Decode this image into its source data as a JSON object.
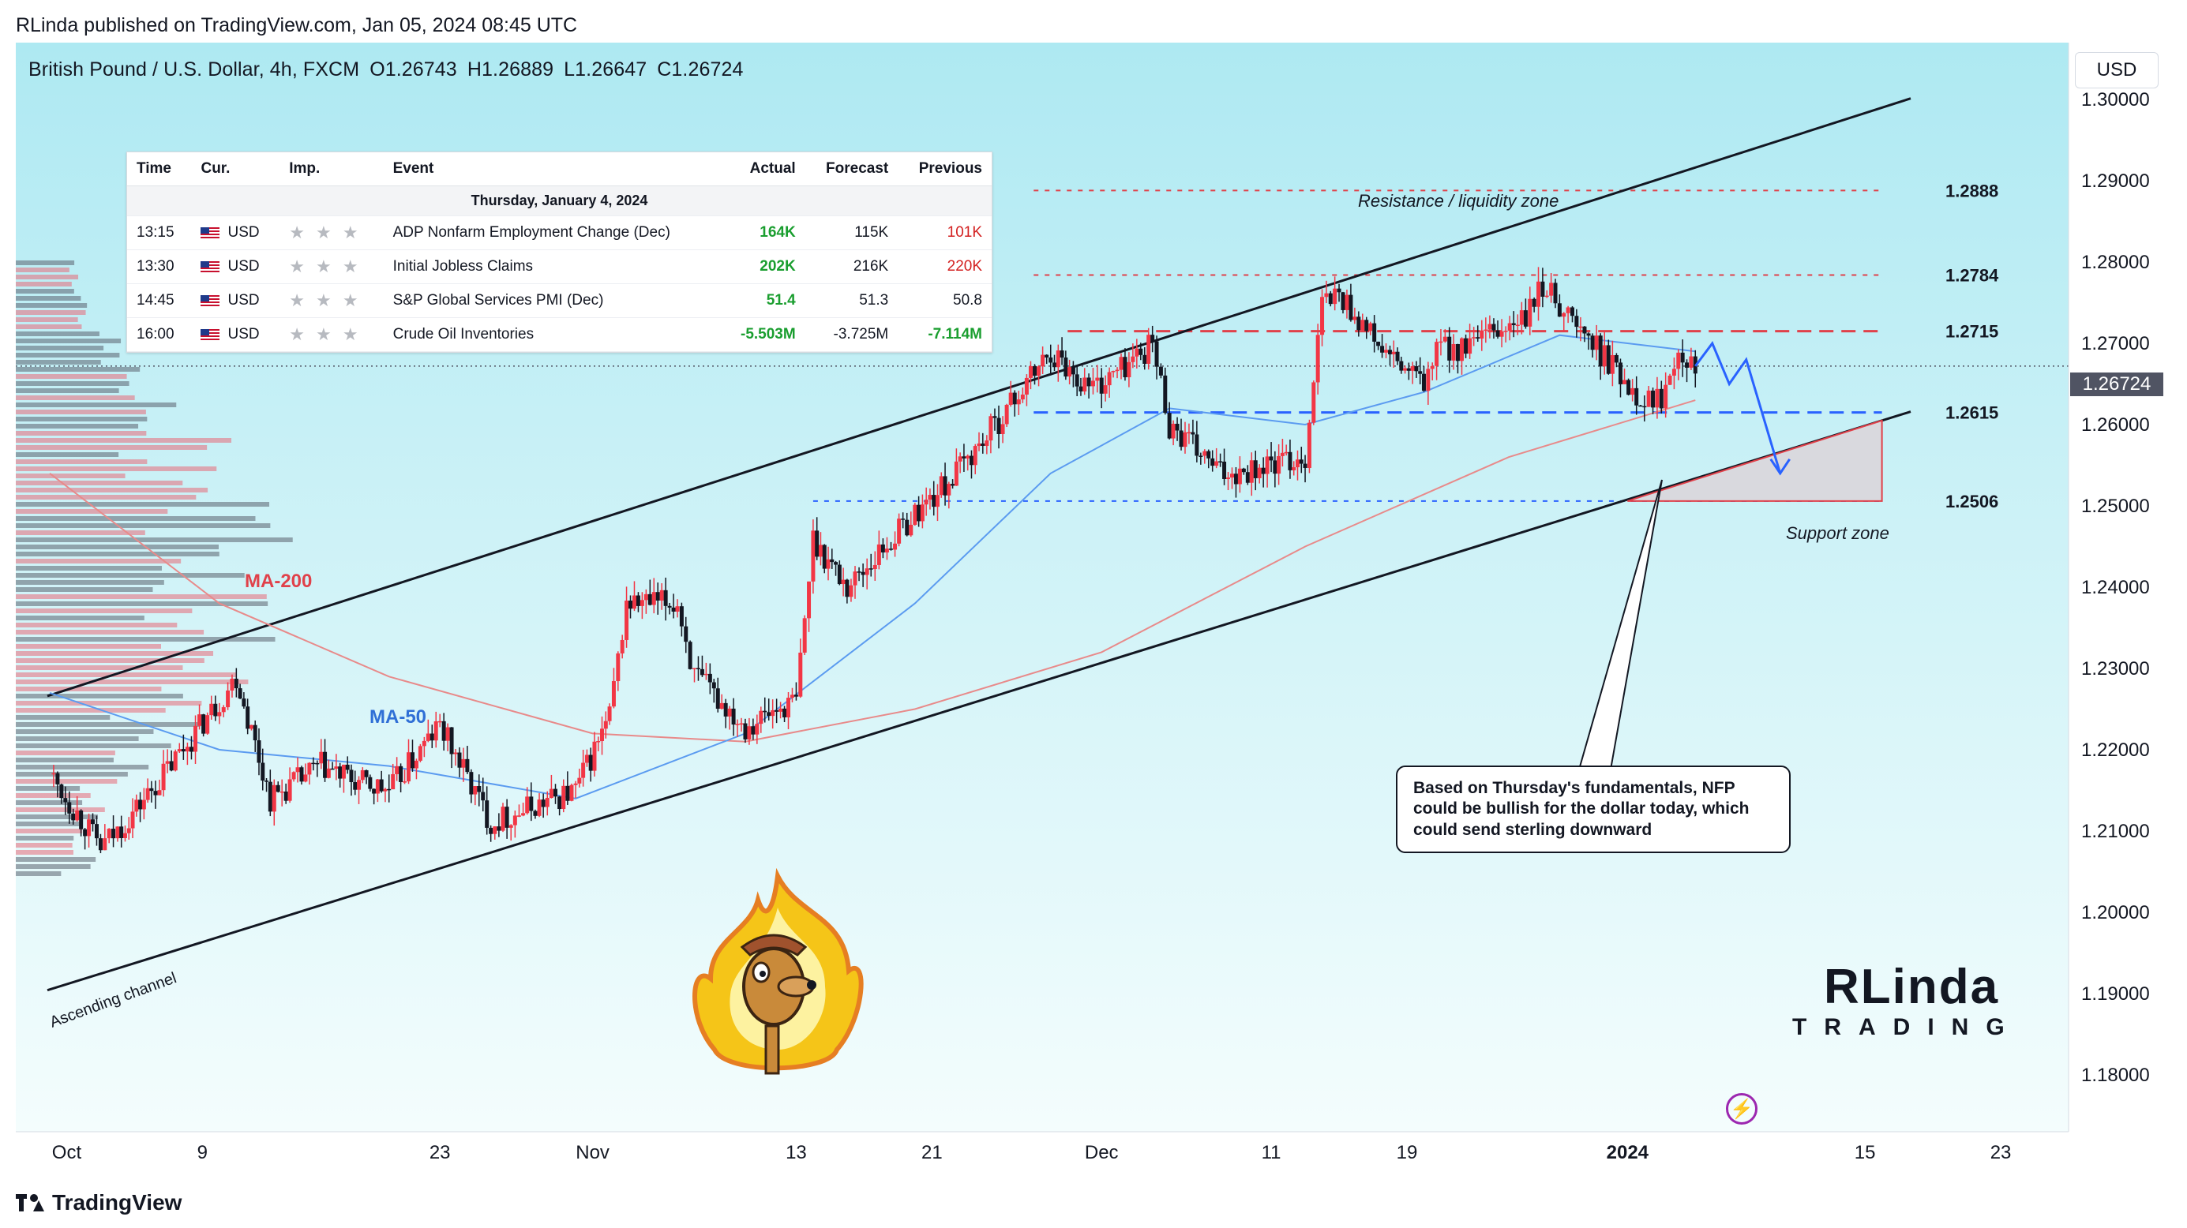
{
  "publisher_line": "RLinda published on TradingView.com, Jan 05, 2024 08:45 UTC",
  "symbol": {
    "name": "British Pound / U.S. Dollar, 4h, FXCM",
    "open": "O1.26743",
    "high": "H1.26889",
    "low": "L1.26647",
    "close": "C1.26724"
  },
  "currency": "USD",
  "current_price_label": "1.26724",
  "calendar": {
    "headers": [
      "Time",
      "Cur.",
      "Imp.",
      "Event",
      "Actual",
      "Forecast",
      "Previous"
    ],
    "date": "Thursday, January 4, 2024",
    "rows": [
      {
        "time": "13:15",
        "cur": "USD",
        "imp": "★ ★ ★",
        "event": "ADP Nonfarm Employment Change (Dec)",
        "actual": "164K",
        "forecast": "115K",
        "previous": "101K",
        "actual_color": "pos",
        "previous_color": "neg"
      },
      {
        "time": "13:30",
        "cur": "USD",
        "imp": "★ ★ ★",
        "event": "Initial Jobless Claims",
        "actual": "202K",
        "forecast": "216K",
        "previous": "220K",
        "actual_color": "pos",
        "previous_color": "neg"
      },
      {
        "time": "14:45",
        "cur": "USD",
        "imp": "★ ★ ★",
        "event": "S&P Global Services PMI (Dec)",
        "actual": "51.4",
        "forecast": "51.3",
        "previous": "50.8",
        "actual_color": "pos",
        "previous_color": ""
      },
      {
        "time": "16:00",
        "cur": "USD",
        "imp": "★ ★ ★",
        "event": "Crude Oil Inventories",
        "actual": "-5.503M",
        "forecast": "-3.725M",
        "previous": "-7.114M",
        "actual_color": "pos",
        "previous_color": "pos"
      }
    ]
  },
  "annotations": {
    "resistance_zone": "Resistance / liquidity zone",
    "support_zone": "Support zone",
    "ascending_channel": "Ascending channel",
    "ma200": "MA-200",
    "ma50": "MA-50",
    "note": "Based on Thursday's fundamentals, NFP could be bullish for the dollar today, which could send sterling downward"
  },
  "logo": {
    "big": "RLinda",
    "small": "TRADING"
  },
  "footer_brand": "TradingView",
  "colors": {
    "background_gradient_top": "#aee9f2",
    "background_gradient_bottom": "#f4fdfd",
    "candle_up": "#f23645",
    "candle_down": "#131722",
    "ma50": "#5b9bf0",
    "ma200": "#e88a8a",
    "resistance_line": "#e0414a",
    "support_line": "#2962ff",
    "forecast_arrow": "#2962ff"
  },
  "chart_data": {
    "type": "candlestick",
    "title": "British Pound / U.S. Dollar, 4h, FXCM",
    "timeframe": "4h",
    "y_axis": {
      "ticks": [
        1.18,
        1.19,
        1.2,
        1.21,
        1.22,
        1.23,
        1.24,
        1.25,
        1.26,
        1.27,
        1.28,
        1.29,
        1.3
      ],
      "tick_labels": [
        "1.18000",
        "1.19000",
        "1.20000",
        "1.21000",
        "1.22000",
        "1.23000",
        "1.24000",
        "1.25000",
        "1.26000",
        "1.27000",
        "1.28000",
        "1.29000",
        "1.30000"
      ],
      "range": [
        1.173,
        1.307
      ]
    },
    "x_axis": {
      "tick_labels": [
        "Oct",
        "9",
        "23",
        "Nov",
        "13",
        "21",
        "Dec",
        "11",
        "19",
        "2024",
        "15",
        "23"
      ],
      "tick_dates": [
        "2023-10-01",
        "2023-10-09",
        "2023-10-23",
        "2023-11-01",
        "2023-11-13",
        "2023-11-21",
        "2023-12-01",
        "2023-12-11",
        "2023-12-19",
        "2024-01-01",
        "2024-01-15",
        "2024-01-23"
      ],
      "range": [
        "2023-09-28",
        "2024-01-27"
      ]
    },
    "levels": [
      {
        "label": "1.2888",
        "value": 1.2888,
        "style": "dotted-red"
      },
      {
        "label": "1.2784",
        "value": 1.2784,
        "style": "dotted-red"
      },
      {
        "label": "1.2715",
        "value": 1.2715,
        "style": "dashed-red"
      },
      {
        "label": "1.2615",
        "value": 1.2615,
        "style": "dashed-blue"
      },
      {
        "label": "1.2506",
        "value": 1.2506,
        "style": "dotted-blue"
      }
    ],
    "channel": {
      "upper": [
        [
          "2023-09-30",
          1.2267
        ],
        [
          "2024-01-16",
          1.299
        ]
      ],
      "lower": [
        [
          "2023-09-30",
          1.1905
        ],
        [
          "2024-01-16",
          1.2605
        ]
      ]
    },
    "close_path": [
      [
        "2023-09-30",
        1.217
      ],
      [
        "2023-10-03",
        1.208
      ],
      [
        "2023-10-04",
        1.21
      ],
      [
        "2023-10-06",
        1.215
      ],
      [
        "2023-10-10",
        1.226
      ],
      [
        "2023-10-11",
        1.229
      ],
      [
        "2023-10-13",
        1.214
      ],
      [
        "2023-10-16",
        1.218
      ],
      [
        "2023-10-18",
        1.216
      ],
      [
        "2023-10-20",
        1.215
      ],
      [
        "2023-10-23",
        1.223
      ],
      [
        "2023-10-26",
        1.211
      ],
      [
        "2023-10-31",
        1.215
      ],
      [
        "2023-11-02",
        1.224
      ],
      [
        "2023-11-03",
        1.238
      ],
      [
        "2023-11-06",
        1.238
      ],
      [
        "2023-11-07",
        1.229
      ],
      [
        "2023-11-10",
        1.223
      ],
      [
        "2023-11-13",
        1.226
      ],
      [
        "2023-11-14",
        1.246
      ],
      [
        "2023-11-16",
        1.24
      ],
      [
        "2023-11-20",
        1.249
      ],
      [
        "2023-11-22",
        1.253
      ],
      [
        "2023-11-24",
        1.258
      ],
      [
        "2023-11-28",
        1.269
      ],
      [
        "2023-11-30",
        1.265
      ],
      [
        "2023-12-01",
        1.265
      ],
      [
        "2023-12-04",
        1.27
      ],
      [
        "2023-12-05",
        1.26
      ],
      [
        "2023-12-08",
        1.254
      ],
      [
        "2023-12-11",
        1.255
      ],
      [
        "2023-12-13",
        1.256
      ],
      [
        "2023-12-14",
        1.275
      ],
      [
        "2023-12-15",
        1.276
      ],
      [
        "2023-12-18",
        1.268
      ],
      [
        "2023-12-20",
        1.265
      ],
      [
        "2023-12-21",
        1.27
      ],
      [
        "2023-12-22",
        1.269
      ],
      [
        "2023-12-26",
        1.273
      ],
      [
        "2023-12-27",
        1.277
      ],
      [
        "2023-12-28",
        1.275
      ],
      [
        "2023-12-29",
        1.272
      ],
      [
        "2024-01-02",
        1.263
      ],
      [
        "2024-01-03",
        1.2635
      ],
      [
        "2024-01-04",
        1.27
      ],
      [
        "2024-01-05",
        1.2672
      ]
    ],
    "ma50": [
      [
        "2023-09-30",
        1.227
      ],
      [
        "2023-10-10",
        1.22
      ],
      [
        "2023-10-20",
        1.218
      ],
      [
        "2023-10-31",
        1.214
      ],
      [
        "2023-11-10",
        1.222
      ],
      [
        "2023-11-20",
        1.238
      ],
      [
        "2023-11-28",
        1.254
      ],
      [
        "2023-12-05",
        1.262
      ],
      [
        "2023-12-13",
        1.26
      ],
      [
        "2023-12-20",
        1.264
      ],
      [
        "2023-12-28",
        1.271
      ],
      [
        "2024-01-05",
        1.269
      ]
    ],
    "ma200": [
      [
        "2023-09-30",
        1.254
      ],
      [
        "2023-10-10",
        1.238
      ],
      [
        "2023-10-20",
        1.229
      ],
      [
        "2023-11-01",
        1.222
      ],
      [
        "2023-11-10",
        1.221
      ],
      [
        "2023-11-20",
        1.225
      ],
      [
        "2023-12-01",
        1.232
      ],
      [
        "2023-12-13",
        1.245
      ],
      [
        "2023-12-25",
        1.256
      ],
      [
        "2024-01-05",
        1.263
      ]
    ],
    "support_box": {
      "x": [
        "2024-01-01",
        "2024-01-16"
      ],
      "y": [
        1.2506,
        1.2605
      ]
    },
    "forecast_path": [
      [
        "2024-01-05",
        1.2672
      ],
      [
        "2024-01-06",
        1.27
      ],
      [
        "2024-01-07",
        1.265
      ],
      [
        "2024-01-08",
        1.268
      ],
      [
        "2024-01-10",
        1.254
      ]
    ]
  }
}
